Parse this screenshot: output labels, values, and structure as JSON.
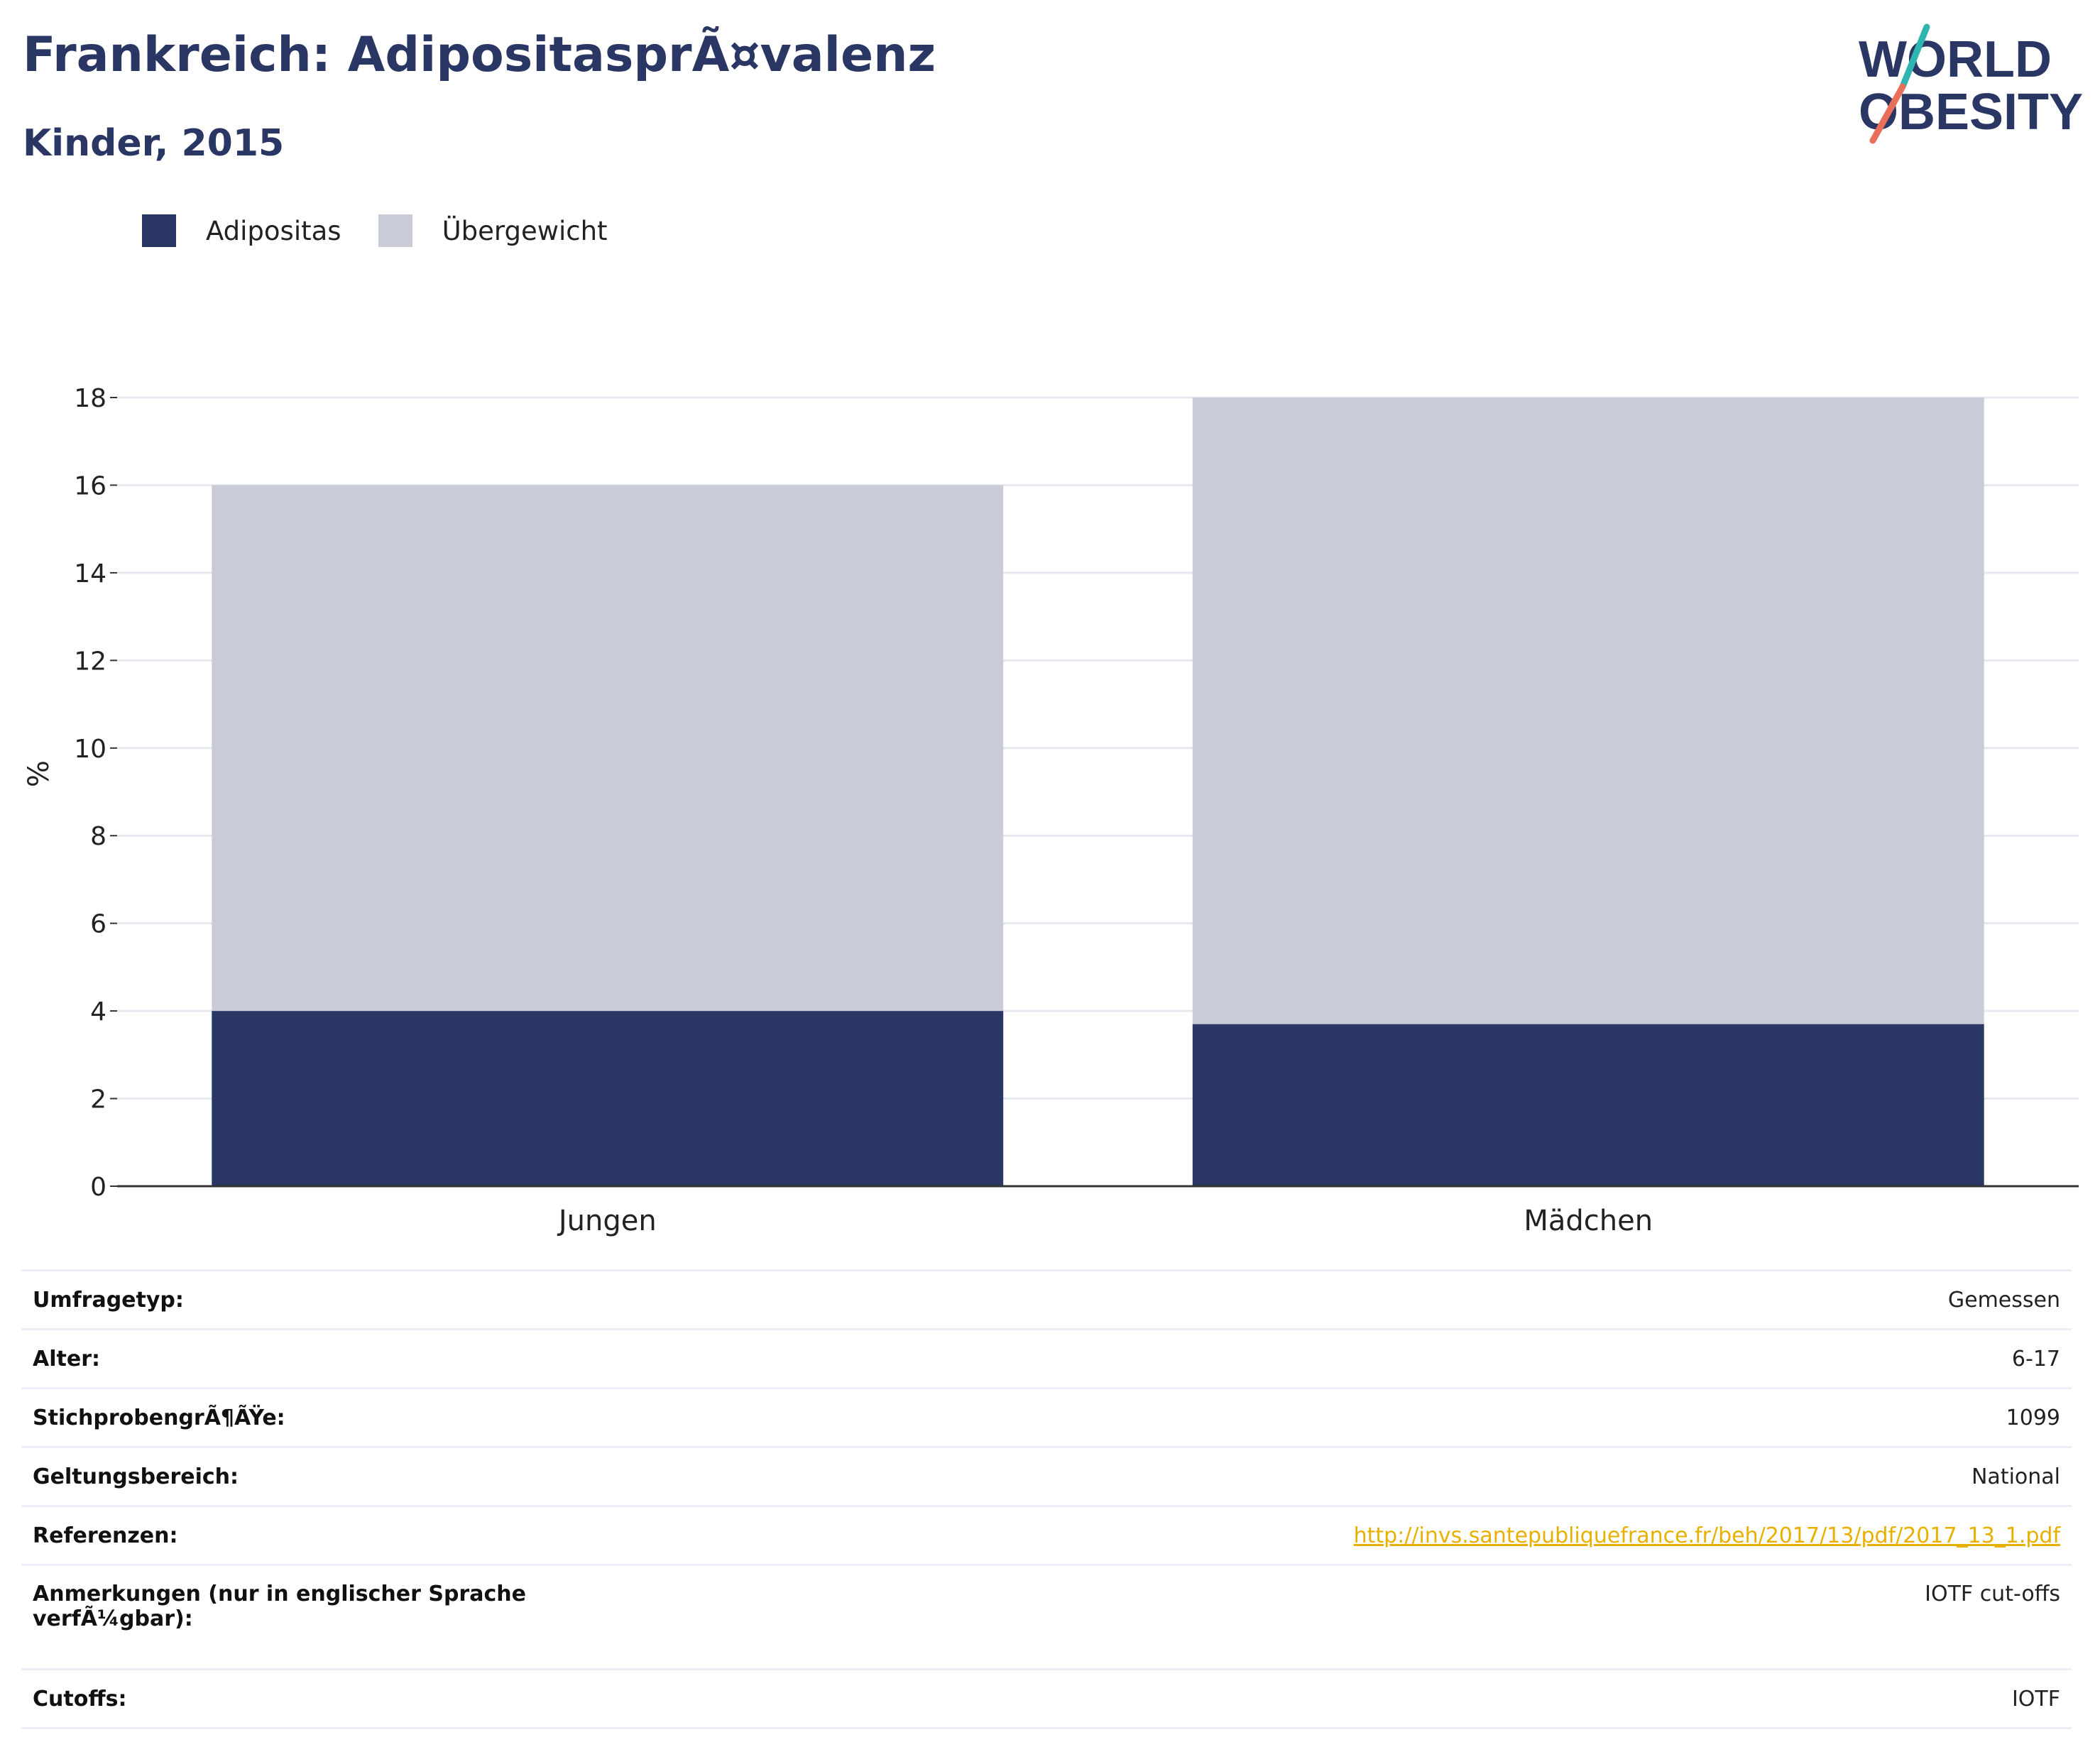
{
  "header": {
    "title": "Frankreich: AdipositasprÃ¤valenz",
    "subtitle": "Kinder, 2015"
  },
  "logo": {
    "line1": "WORLD",
    "line2": "OBESITY",
    "colors": {
      "text": "#2a3663",
      "slash_teal": "#2fb5b0",
      "slash_coral": "#e8705a"
    }
  },
  "colors": {
    "adipositas": "#2a3663",
    "uebergewicht": "#c9cbd6",
    "grid": "#e6e8f0",
    "axis": "#333333"
  },
  "chart_data": {
    "type": "bar",
    "stacked": true,
    "categories": [
      "Jungen",
      "Mädchen"
    ],
    "series": [
      {
        "name": "Adipositas",
        "values": [
          4.0,
          3.7
        ]
      },
      {
        "name": "Übergewicht",
        "values": [
          12.0,
          14.3
        ]
      }
    ],
    "ylabel": "%",
    "ylim": [
      0,
      18
    ],
    "yticks": [
      "0",
      "2",
      "4",
      "6",
      "8",
      "10",
      "12",
      "14",
      "16",
      "18"
    ],
    "grid": true,
    "legend_position": "top-left"
  },
  "info_table": {
    "rows": [
      {
        "key": "Umfragetyp:",
        "value": "Gemessen"
      },
      {
        "key": "Alter:",
        "value": "6-17"
      },
      {
        "key": "StichprobengrÃ¶ÃŸe:",
        "value": "1099"
      },
      {
        "key": "Geltungsbereich:",
        "value": "National"
      },
      {
        "key": "Referenzen:",
        "value": "http://invs.santepubliquefrance.fr/beh/2017/13/pdf/2017_13_1.pdf"
      },
      {
        "key": "Anmerkungen (nur in englischer Sprache verfÃ¼gbar):",
        "value": "IOTF cut-offs"
      },
      {
        "key": "Cutoffs:",
        "value": "IOTF"
      }
    ]
  }
}
